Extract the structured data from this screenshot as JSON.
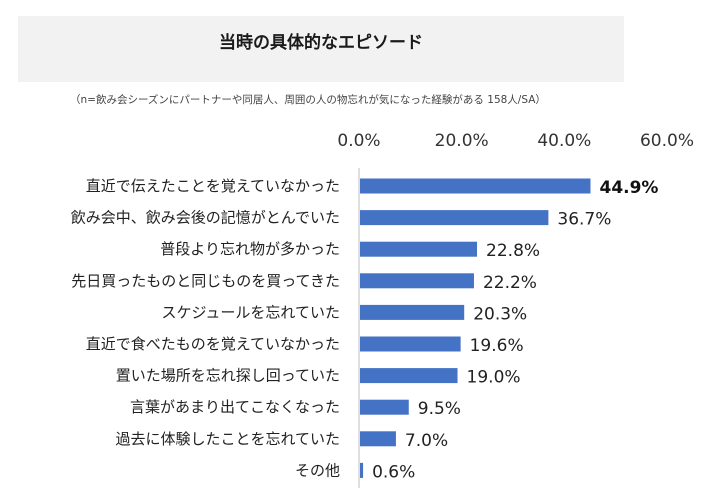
{
  "header": {
    "title": "当時の具体的なエピソード",
    "subtitle": "（n=飲み会シーズンにパートナーや同居人、周囲の人の物忘れが気になった経験がある 158人/SA）"
  },
  "chart_data": {
    "type": "bar",
    "orientation": "horizontal",
    "title": "当時の具体的なエピソード",
    "categories": [
      "直近で伝えたことを覚えていなかった",
      "飲み会中、飲み会後の記憶がとんでいた",
      "普段より忘れ物が多かった",
      "先日買ったものと同じものを買ってきた",
      "スケジュールを忘れていた",
      "直近で食べたものを覚えていなかった",
      "置いた場所を忘れ探し回っていた",
      "言葉があまり出てこなくなった",
      "過去に体験したことを忘れていた",
      "その他"
    ],
    "values": [
      44.9,
      36.7,
      22.8,
      22.2,
      20.3,
      19.6,
      19.0,
      9.5,
      7.0,
      0.6
    ],
    "value_labels": [
      "44.9%",
      "36.7%",
      "22.8%",
      "22.2%",
      "20.3%",
      "19.6%",
      "19.0%",
      "9.5%",
      "7.0%",
      "0.6%"
    ],
    "highlight_index": 0,
    "xlim": [
      0,
      60
    ],
    "ticks": [
      "0.0%",
      "20.0%",
      "40.0%",
      "60.0%"
    ],
    "tick_values": [
      0,
      20,
      40,
      60
    ],
    "axis_position": "top",
    "grid": false,
    "bar_color": "#4472c4"
  }
}
